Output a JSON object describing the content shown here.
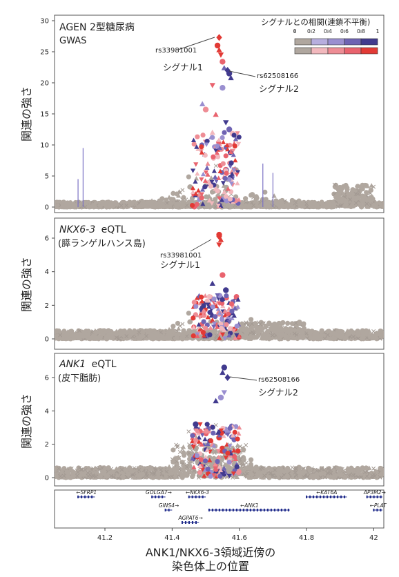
{
  "chart_data": [
    {
      "type": "scatter",
      "title": "AGEN 2型糖尿病",
      "subtitle": "GWAS",
      "ylabel": "関連の強さ",
      "ylim": [
        0,
        30
      ],
      "yticks": [
        "0",
        "5",
        "10",
        "15",
        "20",
        "25",
        "30"
      ],
      "annotations": [
        {
          "text": "rs33981001",
          "x": 41.54,
          "y": 27.3
        },
        {
          "text": "シグナル1",
          "x": 41.54,
          "y": 27.3
        },
        {
          "text": "rs62508166",
          "x": 41.565,
          "y": 22.0
        },
        {
          "text": "シグナル2",
          "x": 41.565,
          "y": 22.0
        }
      ],
      "legend": {
        "title": "シグナルとの相関(連鎖不平衡)",
        "ticks": [
          "0",
          "0.2",
          "0.4",
          "0.6",
          "0.8",
          "1"
        ],
        "colors_signal2": [
          "#b0a79f",
          "#b7aede",
          "#9a8fd0",
          "#6e63b3",
          "#413a8e"
        ],
        "colors_signal1": [
          "#b0a79f",
          "#f2b8bd",
          "#ee8d95",
          "#e9636e",
          "#e23a35"
        ],
        "placement": "top-right"
      },
      "lead_snps": [
        {
          "name": "rs33981001",
          "x": 41.54,
          "y": 27.3,
          "color": "#e23a35"
        },
        {
          "name": "rs62508166",
          "x": 41.565,
          "y": 22.0,
          "color": "#413a8e"
        }
      ],
      "peak_points": [
        {
          "x": 41.535,
          "y": 26.0,
          "color": "#e23a35"
        },
        {
          "x": 41.54,
          "y": 25.3,
          "color": "#e23a35"
        },
        {
          "x": 41.545,
          "y": 24.5,
          "color": "#e23a35"
        },
        {
          "x": 41.55,
          "y": 23.4,
          "color": "#e9636e"
        },
        {
          "x": 41.555,
          "y": 22.4,
          "color": "#6e63b3"
        },
        {
          "x": 41.57,
          "y": 21.5,
          "color": "#413a8e"
        },
        {
          "x": 41.575,
          "y": 20.8,
          "color": "#413a8e"
        },
        {
          "x": 41.52,
          "y": 19.6,
          "color": "#e9636e"
        },
        {
          "x": 41.55,
          "y": 19.2,
          "color": "#9a8fd0"
        },
        {
          "x": 41.49,
          "y": 16.6,
          "color": "#9a8fd0"
        },
        {
          "x": 41.5,
          "y": 15.7,
          "color": "#ee8d95"
        },
        {
          "x": 41.53,
          "y": 14.9,
          "color": "#e9636e"
        },
        {
          "x": 41.56,
          "y": 13.6,
          "color": "#413a8e"
        },
        {
          "x": 41.57,
          "y": 12.5,
          "color": "#6e63b3"
        },
        {
          "x": 41.52,
          "y": 12.0,
          "color": "#f2b8bd"
        },
        {
          "x": 41.58,
          "y": 11.8,
          "color": "#f2b8bd"
        },
        {
          "x": 41.54,
          "y": 10.2,
          "color": "#ee8d95"
        },
        {
          "x": 41.58,
          "y": 9.0,
          "color": "#ee8d95"
        },
        {
          "x": 41.56,
          "y": 6.0,
          "color": "#e9636e"
        },
        {
          "x": 41.53,
          "y": 3.0,
          "color": "#f2b8bd"
        },
        {
          "x": 41.55,
          "y": 1.2,
          "color": "#9a8fd0"
        }
      ]
    },
    {
      "type": "scatter",
      "title": "NKX6-3",
      "title_suffix": "eQTL",
      "subtitle": "(膵ランゲルハンス島)",
      "ylabel": "関連の強さ",
      "ylim": [
        0,
        7
      ],
      "yticks": [
        "0",
        "2",
        "4",
        "6"
      ],
      "annotations": [
        {
          "text": "rs33981001",
          "x": 41.54,
          "y": 6.1
        },
        {
          "text": "シグナル1",
          "x": 41.54,
          "y": 6.1
        }
      ],
      "lead_snps": [
        {
          "name": "rs33981001",
          "x": 41.54,
          "y": 6.1,
          "color": "#e23a35"
        }
      ],
      "peak_points": [
        {
          "x": 41.54,
          "y": 6.2,
          "color": "#e23a35"
        },
        {
          "x": 41.545,
          "y": 5.9,
          "color": "#e23a35"
        },
        {
          "x": 41.54,
          "y": 5.6,
          "color": "#e23a35"
        },
        {
          "x": 41.55,
          "y": 3.8,
          "color": "#e9636e"
        },
        {
          "x": 41.52,
          "y": 3.3,
          "color": "#413a8e"
        },
        {
          "x": 41.56,
          "y": 2.9,
          "color": "#413a8e"
        },
        {
          "x": 41.55,
          "y": 2.4,
          "color": "#6e63b3"
        },
        {
          "x": 41.53,
          "y": 2.0,
          "color": "#e9636e"
        },
        {
          "x": 41.54,
          "y": 1.5,
          "color": "#ee8d95"
        },
        {
          "x": 41.52,
          "y": 1.1,
          "color": "#e23a35"
        },
        {
          "x": 41.55,
          "y": 0.8,
          "color": "#9a8fd0"
        },
        {
          "x": 41.48,
          "y": 0.6,
          "color": "#f2b8bd"
        }
      ]
    },
    {
      "type": "scatter",
      "title": "ANK1",
      "title_suffix": "eQTL",
      "subtitle": "(皮下脂肪)",
      "ylabel": "関連の強さ",
      "ylim": [
        0,
        8
      ],
      "yticks": [
        "0",
        "2",
        "4",
        "6"
      ],
      "annotations": [
        {
          "text": "rs62508166",
          "x": 41.565,
          "y": 6.0
        },
        {
          "text": "シグナル2",
          "x": 41.565,
          "y": 6.0
        }
      ],
      "lead_snps": [
        {
          "name": "rs62508166",
          "x": 41.565,
          "y": 6.0,
          "color": "#413a8e"
        }
      ],
      "peak_points": [
        {
          "x": 41.555,
          "y": 6.6,
          "color": "#413a8e"
        },
        {
          "x": 41.55,
          "y": 6.3,
          "color": "#413a8e"
        },
        {
          "x": 41.555,
          "y": 5.1,
          "color": "#9a8fd0"
        },
        {
          "x": 41.545,
          "y": 4.8,
          "color": "#9a8fd0"
        },
        {
          "x": 41.53,
          "y": 4.6,
          "color": "#413a8e"
        },
        {
          "x": 41.47,
          "y": 3.2,
          "color": "#413a8e"
        },
        {
          "x": 41.48,
          "y": 2.9,
          "color": "#6e63b3"
        },
        {
          "x": 41.56,
          "y": 2.7,
          "color": "#6e63b3"
        },
        {
          "x": 41.54,
          "y": 2.4,
          "color": "#e23a35"
        },
        {
          "x": 41.52,
          "y": 2.0,
          "color": "#ee8d95"
        },
        {
          "x": 41.55,
          "y": 1.6,
          "color": "#e23a35"
        },
        {
          "x": 41.5,
          "y": 1.2,
          "color": "#f2b8bd"
        },
        {
          "x": 41.57,
          "y": 0.9,
          "color": "#f2b8bd"
        }
      ]
    },
    {
      "type": "gene-track",
      "xlim": [
        41.05,
        42.03
      ],
      "xticks": [
        "41.2",
        "41.4",
        "41.6",
        "41.8",
        "42"
      ],
      "xlabel": "ANK1/NKX6-3領域近傍の\n染色体上の位置",
      "genes": [
        {
          "name": "SFRP1",
          "start": 41.12,
          "end": 41.17,
          "row": 0,
          "dir": "left"
        },
        {
          "name": "GOLGA7",
          "start": 41.34,
          "end": 41.38,
          "row": 0,
          "dir": "right"
        },
        {
          "name": "NKX6-3",
          "start": 41.45,
          "end": 41.5,
          "row": 0,
          "dir": "left"
        },
        {
          "name": "KAT6A",
          "start": 41.8,
          "end": 41.92,
          "row": 0,
          "dir": "left"
        },
        {
          "name": "AP3M2",
          "start": 41.98,
          "end": 42.03,
          "row": 0,
          "dir": "right"
        },
        {
          "name": "GINS4",
          "start": 41.38,
          "end": 41.4,
          "row": 1,
          "dir": "right"
        },
        {
          "name": "ANK1",
          "start": 41.51,
          "end": 41.75,
          "row": 1,
          "dir": "left"
        },
        {
          "name": "PLAT",
          "start": 42.0,
          "end": 42.03,
          "row": 1,
          "dir": "left"
        },
        {
          "name": "AGPAT6",
          "start": 41.43,
          "end": 41.48,
          "row": 2,
          "dir": "right"
        }
      ]
    }
  ]
}
